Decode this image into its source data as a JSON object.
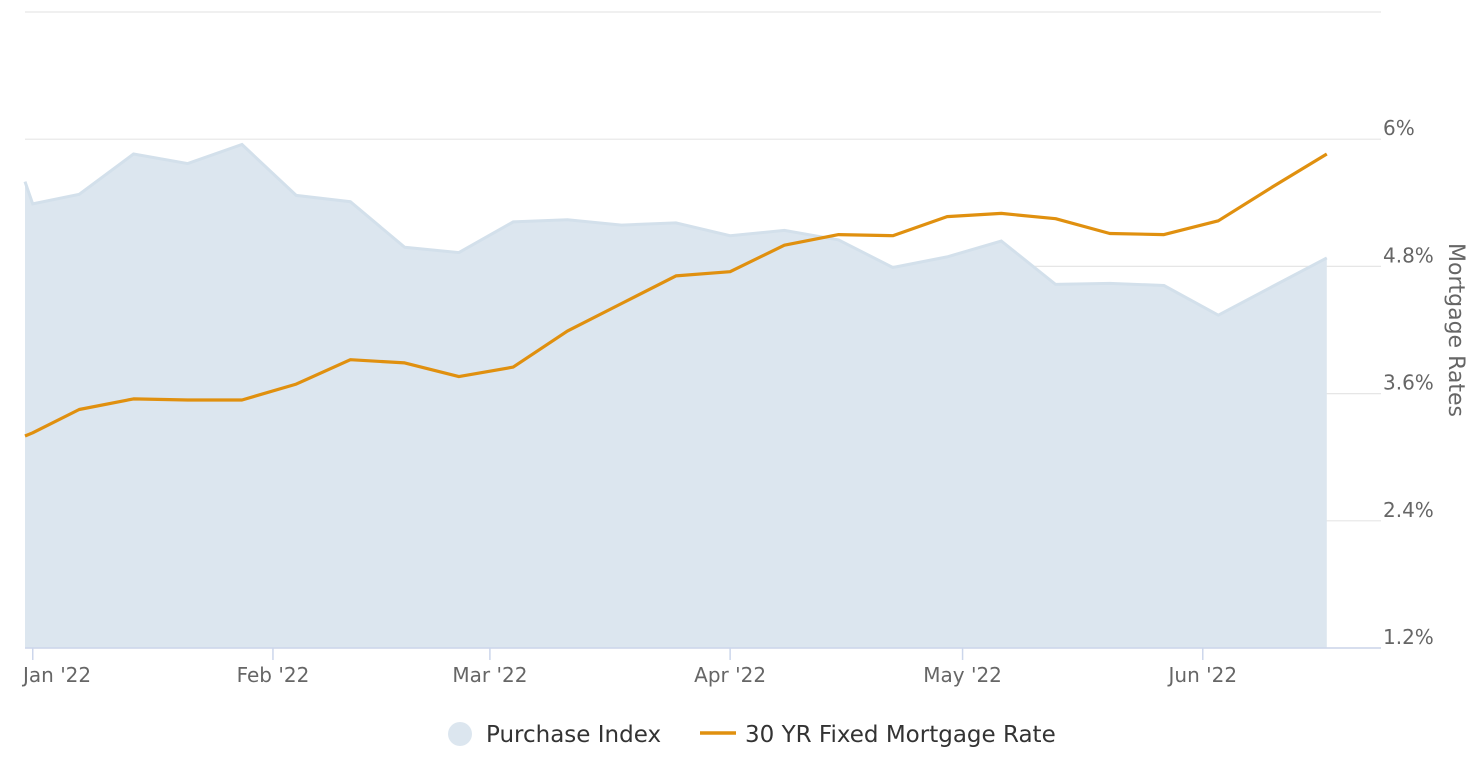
{
  "chart_data": {
    "type": "line",
    "x_axis": {
      "tick_labels": [
        "Jan '22",
        "Feb '22",
        "Mar '22",
        "Apr '22",
        "May '22",
        "Jun '22"
      ],
      "tick_dates": [
        "2022-01-01",
        "2022-02-01",
        "2022-03-01",
        "2022-04-01",
        "2022-05-01",
        "2022-06-01"
      ],
      "range": [
        "2021-12-31",
        "2022-06-24"
      ]
    },
    "y_axis": {
      "title": "Mortgage Rates",
      "side": "right",
      "tick_values": [
        1.2,
        2.4,
        3.6,
        4.8,
        6
      ],
      "tick_labels": [
        "1.2%",
        "2.4%",
        "3.6%",
        "4.8%",
        "6%"
      ],
      "range": [
        1.2,
        7.2
      ],
      "grid": true
    },
    "legend": {
      "placement": "bottom-center",
      "items": [
        {
          "label": "Purchase Index",
          "symbol": "circle",
          "color": "#dce6ef"
        },
        {
          "label": "30 YR Fixed Mortgage Rate",
          "symbol": "line",
          "color": "#e0900f"
        }
      ]
    },
    "series": [
      {
        "name": "Purchase Index",
        "type": "area",
        "color": "#dce6ef",
        "line_color": "#d3e0eb",
        "axis": "hidden-secondary",
        "points": [
          {
            "date": "2021-12-31",
            "value": 5.6
          },
          {
            "date": "2022-01-01",
            "value": 5.39
          },
          {
            "date": "2022-01-07",
            "value": 5.48
          },
          {
            "date": "2022-01-14",
            "value": 5.86
          },
          {
            "date": "2022-01-21",
            "value": 5.77
          },
          {
            "date": "2022-01-28",
            "value": 5.95
          },
          {
            "date": "2022-02-04",
            "value": 5.47
          },
          {
            "date": "2022-02-11",
            "value": 5.41
          },
          {
            "date": "2022-02-18",
            "value": 4.98
          },
          {
            "date": "2022-02-25",
            "value": 4.93
          },
          {
            "date": "2022-03-04",
            "value": 5.22
          },
          {
            "date": "2022-03-11",
            "value": 5.24
          },
          {
            "date": "2022-03-18",
            "value": 5.19
          },
          {
            "date": "2022-03-25",
            "value": 5.21
          },
          {
            "date": "2022-04-01",
            "value": 5.09
          },
          {
            "date": "2022-04-08",
            "value": 5.14
          },
          {
            "date": "2022-04-15",
            "value": 5.05
          },
          {
            "date": "2022-04-22",
            "value": 4.79
          },
          {
            "date": "2022-04-29",
            "value": 4.89
          },
          {
            "date": "2022-05-06",
            "value": 5.04
          },
          {
            "date": "2022-05-13",
            "value": 4.63
          },
          {
            "date": "2022-05-20",
            "value": 4.64
          },
          {
            "date": "2022-05-27",
            "value": 4.62
          },
          {
            "date": "2022-06-03",
            "value": 4.34
          },
          {
            "date": "2022-06-10",
            "value": 4.61
          },
          {
            "date": "2022-06-17",
            "value": 4.88
          }
        ]
      },
      {
        "name": "30 YR Fixed Mortgage Rate",
        "type": "line",
        "color": "#e0900f",
        "axis": "right",
        "points": [
          {
            "date": "2021-12-31",
            "value": 3.2
          },
          {
            "date": "2022-01-01",
            "value": 3.23
          },
          {
            "date": "2022-01-07",
            "value": 3.45
          },
          {
            "date": "2022-01-14",
            "value": 3.55
          },
          {
            "date": "2022-01-21",
            "value": 3.54
          },
          {
            "date": "2022-01-28",
            "value": 3.54
          },
          {
            "date": "2022-02-04",
            "value": 3.69
          },
          {
            "date": "2022-02-11",
            "value": 3.92
          },
          {
            "date": "2022-02-18",
            "value": 3.89
          },
          {
            "date": "2022-02-25",
            "value": 3.76
          },
          {
            "date": "2022-03-04",
            "value": 3.85
          },
          {
            "date": "2022-03-11",
            "value": 4.19
          },
          {
            "date": "2022-03-18",
            "value": 4.45
          },
          {
            "date": "2022-03-25",
            "value": 4.71
          },
          {
            "date": "2022-04-01",
            "value": 4.75
          },
          {
            "date": "2022-04-08",
            "value": 5.0
          },
          {
            "date": "2022-04-15",
            "value": 5.1
          },
          {
            "date": "2022-04-22",
            "value": 5.09
          },
          {
            "date": "2022-04-29",
            "value": 5.27
          },
          {
            "date": "2022-05-06",
            "value": 5.3
          },
          {
            "date": "2022-05-13",
            "value": 5.25
          },
          {
            "date": "2022-05-20",
            "value": 5.11
          },
          {
            "date": "2022-05-27",
            "value": 5.1
          },
          {
            "date": "2022-06-03",
            "value": 5.23
          },
          {
            "date": "2022-06-10",
            "value": 5.55
          },
          {
            "date": "2022-06-17",
            "value": 5.86
          }
        ]
      }
    ]
  }
}
